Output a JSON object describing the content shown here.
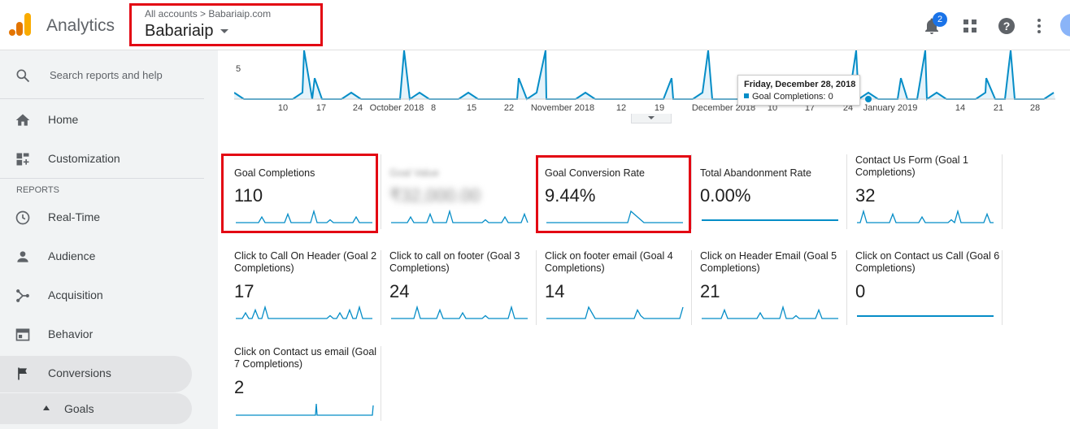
{
  "header": {
    "app_title": "Analytics",
    "breadcrumb": "All accounts > Babariaip.com",
    "property": "Babariaip",
    "notification_count": "2",
    "icons": [
      "bell-icon",
      "apps-grid-icon",
      "help-icon",
      "more-vert-icon",
      "avatar"
    ]
  },
  "sidebar": {
    "search_placeholder": "Search reports and help",
    "section_reports": "REPORTS",
    "items": [
      {
        "label": "Home",
        "icon": "home-icon"
      },
      {
        "label": "Customization",
        "icon": "dashboard-icon"
      },
      {
        "label": "Real-Time",
        "icon": "clock-icon"
      },
      {
        "label": "Audience",
        "icon": "person-icon"
      },
      {
        "label": "Acquisition",
        "icon": "acquisition-icon"
      },
      {
        "label": "Behavior",
        "icon": "behavior-icon"
      },
      {
        "label": "Conversions",
        "icon": "flag-icon"
      }
    ],
    "sub_item": "Goals"
  },
  "timeline": {
    "y_tick": "5",
    "x_ticks": [
      "10",
      "17",
      "24",
      "October 2018",
      "8",
      "15",
      "22",
      "November 2018",
      "12",
      "19",
      "December 2018",
      "10",
      "17",
      "24",
      "January 2019",
      "14",
      "21",
      "28"
    ],
    "tooltip_date": "Friday, December 28, 2018",
    "tooltip_series": "Goal Completions:",
    "tooltip_value": "0",
    "line_color": "#058dc7"
  },
  "metrics": [
    {
      "title": "Goal Completions",
      "value": "110",
      "blurred": false
    },
    {
      "title": "Goal Value",
      "value": "₹32,000.00",
      "blurred": true
    },
    {
      "title": "Goal Conversion Rate",
      "value": "9.44%",
      "blurred": false
    },
    {
      "title": "Total Abandonment Rate",
      "value": "0.00%",
      "blurred": false
    },
    {
      "title": "Contact Us Form (Goal 1 Completions)",
      "value": "32",
      "blurred": false
    },
    {
      "title": "Click to Call On Header (Goal 2 Completions)",
      "value": "17",
      "blurred": false
    },
    {
      "title": "Click to call on footer (Goal 3 Completions)",
      "value": "24",
      "blurred": false
    },
    {
      "title": "Click on footer email (Goal 4 Completions)",
      "value": "14",
      "blurred": false
    },
    {
      "title": "Click on Header Email (Goal 5 Completions)",
      "value": "21",
      "blurred": false
    },
    {
      "title": "Click on Contact us Call (Goal 6 Completions)",
      "value": "0",
      "blurred": false
    },
    {
      "title": "Click on Contact us email (Goal 7 Completions)",
      "value": "2",
      "blurred": false
    }
  ],
  "colors": {
    "highlight": "#e30613",
    "accent": "#058dc7",
    "badge": "#1a73e8"
  }
}
